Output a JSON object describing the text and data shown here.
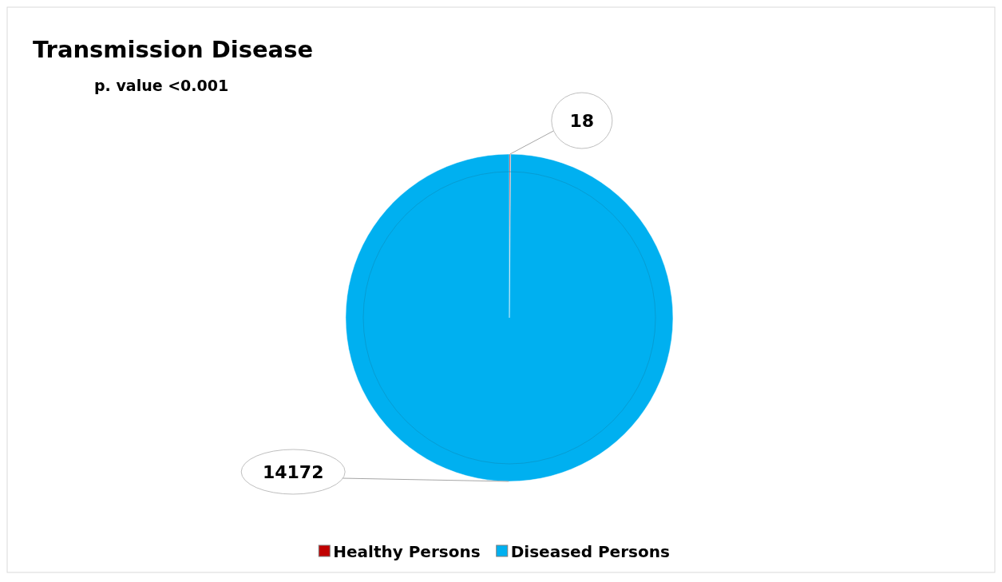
{
  "chart_data": {
    "type": "pie",
    "title": "Transmission Disease",
    "subtitle": "p. value <0.001",
    "categories": [
      "Healthy Persons",
      "Diseased Persons"
    ],
    "values": [
      18,
      14172
    ],
    "colors": [
      "#c00000",
      "#00b0f0"
    ],
    "data_labels": true,
    "legend": "bottom"
  }
}
